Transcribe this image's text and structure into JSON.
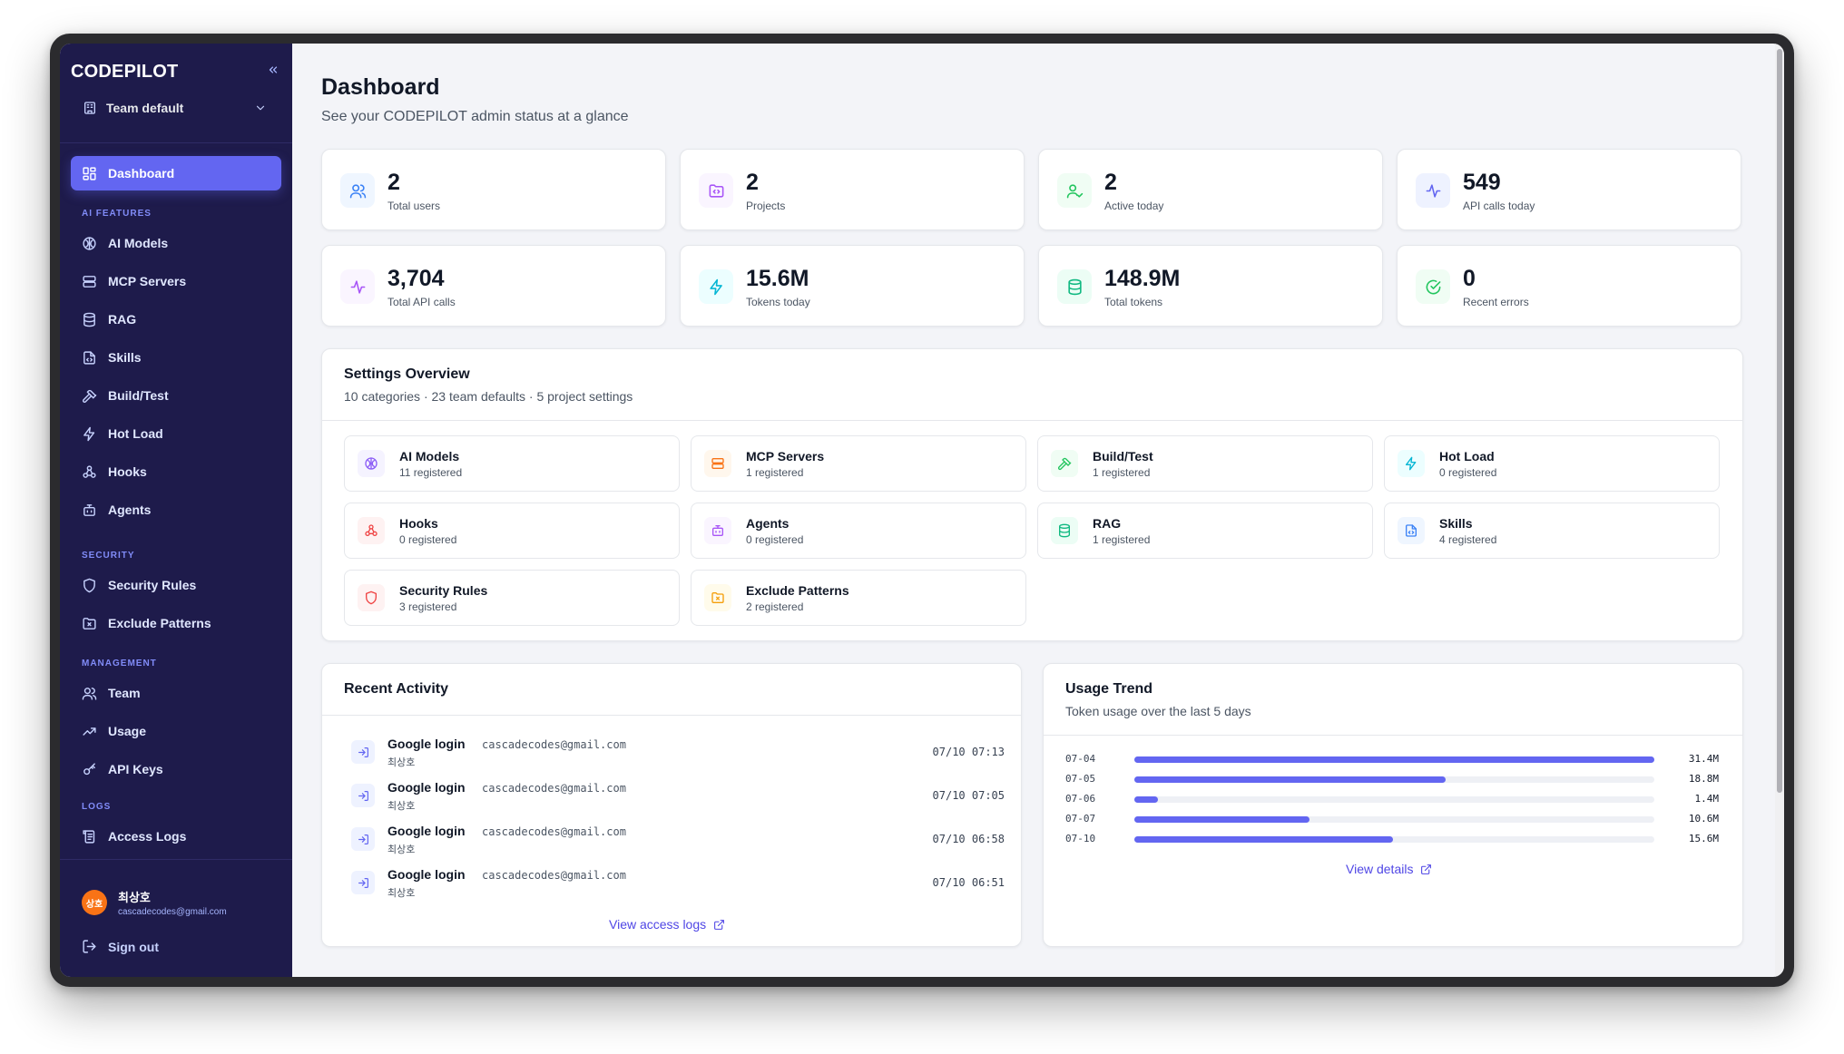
{
  "brand": "CODEPILOT",
  "team_selector": "Team default",
  "sidebar": {
    "dashboard": "Dashboard",
    "sections": {
      "ai": "AI FEATURES",
      "security": "SECURITY",
      "management": "MANAGEMENT",
      "logs": "LOGS"
    },
    "ai_items": [
      "AI Models",
      "MCP Servers",
      "RAG",
      "Skills",
      "Build/Test",
      "Hot Load",
      "Hooks",
      "Agents"
    ],
    "security_items": [
      "Security Rules",
      "Exclude Patterns"
    ],
    "management_items": [
      "Team",
      "Usage",
      "API Keys"
    ],
    "logs_items": [
      "Access Logs"
    ],
    "user": {
      "initials": "상호",
      "name": "최상호",
      "email": "cascadecodes@gmail.com"
    },
    "sign_out": "Sign out"
  },
  "header": {
    "title": "Dashboard",
    "subtitle": "See your CODEPILOT admin status at a glance"
  },
  "stats": [
    {
      "value": "2",
      "label": "Total users",
      "icon": "users-icon",
      "color": "#3b82f6",
      "bg": "#eff6ff"
    },
    {
      "value": "2",
      "label": "Projects",
      "icon": "folder-code-icon",
      "color": "#a855f7",
      "bg": "#faf5ff"
    },
    {
      "value": "2",
      "label": "Active today",
      "icon": "users-check-icon",
      "color": "#22c55e",
      "bg": "#f0fdf4"
    },
    {
      "value": "549",
      "label": "API calls today",
      "icon": "activity-icon",
      "color": "#6366f1",
      "bg": "#eef2ff"
    },
    {
      "value": "3,704",
      "label": "Total API calls",
      "icon": "activity-icon",
      "color": "#a855f7",
      "bg": "#faf5ff"
    },
    {
      "value": "15.6M",
      "label": "Tokens today",
      "icon": "zap-icon",
      "color": "#06b6d4",
      "bg": "#ecfeff"
    },
    {
      "value": "148.9M",
      "label": "Total tokens",
      "icon": "database-icon",
      "color": "#10b981",
      "bg": "#ecfdf5"
    },
    {
      "value": "0",
      "label": "Recent errors",
      "icon": "check-circle-icon",
      "color": "#22c55e",
      "bg": "#f0fdf4"
    }
  ],
  "settings_overview": {
    "title": "Settings Overview",
    "subtitle": "10 categories · 23 team defaults · 5 project settings",
    "items": [
      {
        "name": "AI Models",
        "count": "11 registered",
        "icon": "brain-icon",
        "color": "#8b5cf6",
        "bg": "#f5f3ff"
      },
      {
        "name": "MCP Servers",
        "count": "1 registered",
        "icon": "server-icon",
        "color": "#f97316",
        "bg": "#fff7ed"
      },
      {
        "name": "Build/Test",
        "count": "1 registered",
        "icon": "hammer-icon",
        "color": "#22c55e",
        "bg": "#f0fdf4"
      },
      {
        "name": "Hot Load",
        "count": "0 registered",
        "icon": "zap-icon",
        "color": "#06b6d4",
        "bg": "#ecfeff"
      },
      {
        "name": "Hooks",
        "count": "0 registered",
        "icon": "webhook-icon",
        "color": "#ef4444",
        "bg": "#fef2f2"
      },
      {
        "name": "Agents",
        "count": "0 registered",
        "icon": "bot-icon",
        "color": "#a855f7",
        "bg": "#faf5ff"
      },
      {
        "name": "RAG",
        "count": "1 registered",
        "icon": "database-icon",
        "color": "#10b981",
        "bg": "#ecfdf5"
      },
      {
        "name": "Skills",
        "count": "4 registered",
        "icon": "file-code-icon",
        "color": "#3b82f6",
        "bg": "#eff6ff"
      },
      {
        "name": "Security Rules",
        "count": "3 registered",
        "icon": "shield-icon",
        "color": "#ef4444",
        "bg": "#fef2f2"
      },
      {
        "name": "Exclude Patterns",
        "count": "2 registered",
        "icon": "folder-x-icon",
        "color": "#f59e0b",
        "bg": "#fffbeb"
      }
    ]
  },
  "recent_activity": {
    "title": "Recent Activity",
    "items": [
      {
        "event": "Google login",
        "email": "cascadecodes@gmail.com",
        "user": "최상호",
        "time": "07/10 07:13"
      },
      {
        "event": "Google login",
        "email": "cascadecodes@gmail.com",
        "user": "최상호",
        "time": "07/10 07:05"
      },
      {
        "event": "Google login",
        "email": "cascadecodes@gmail.com",
        "user": "최상호",
        "time": "07/10 06:58"
      },
      {
        "event": "Google login",
        "email": "cascadecodes@gmail.com",
        "user": "최상호",
        "time": "07/10 06:51"
      }
    ],
    "link": "View access logs"
  },
  "usage_trend": {
    "title": "Usage Trend",
    "subtitle": "Token usage over the last 5 days",
    "link": "View details"
  },
  "chart_data": {
    "type": "bar",
    "orientation": "horizontal",
    "categories": [
      "07-04",
      "07-05",
      "07-06",
      "07-07",
      "07-10"
    ],
    "values": [
      31.4,
      18.8,
      1.4,
      10.6,
      15.6
    ],
    "value_labels": [
      "31.4M",
      "18.8M",
      "1.4M",
      "10.6M",
      "15.6M"
    ],
    "xlim": [
      0,
      31.4
    ],
    "grid": false,
    "color": "#6366f1"
  }
}
